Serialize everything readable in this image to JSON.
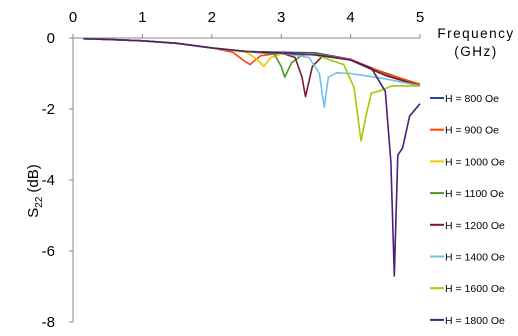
{
  "chart_data": {
    "type": "line",
    "xlabel": "Frequency",
    "xlabel_unit": "(GHz)",
    "ylabel": "S",
    "ylabel_sub": "22",
    "ylabel_unit": "(dB)",
    "xlim": [
      0,
      5
    ],
    "ylim": [
      -8,
      0
    ],
    "x_ticks": [
      0,
      1,
      2,
      3,
      4,
      5
    ],
    "y_ticks": [
      0,
      -2,
      -4,
      -6,
      -8
    ],
    "grid": false,
    "x_axis_position": "top",
    "legend_position": "right",
    "series": [
      {
        "name": "H = 800 Oe",
        "color": "#1f4e9e",
        "x": [
          0.15,
          0.5,
          1.0,
          1.5,
          2.0,
          2.5,
          3.0,
          3.5,
          4.0,
          4.3,
          4.6,
          4.8,
          5.0
        ],
        "y": [
          -0.02,
          -0.04,
          -0.08,
          -0.15,
          -0.28,
          -0.38,
          -0.4,
          -0.42,
          -0.6,
          -0.85,
          -1.05,
          -1.2,
          -1.3
        ]
      },
      {
        "name": "H = 900 Oe",
        "color": "#ff4500",
        "x": [
          0.15,
          0.5,
          1.0,
          1.5,
          2.0,
          2.3,
          2.45,
          2.55,
          2.7,
          3.0,
          3.5,
          4.0,
          4.5,
          5.0
        ],
        "y": [
          -0.02,
          -0.04,
          -0.08,
          -0.15,
          -0.28,
          -0.4,
          -0.62,
          -0.75,
          -0.5,
          -0.42,
          -0.45,
          -0.6,
          -1.0,
          -1.3
        ]
      },
      {
        "name": "H = 1000 Oe",
        "color": "#f5c400",
        "x": [
          0.15,
          0.5,
          1.0,
          1.5,
          2.0,
          2.5,
          2.65,
          2.75,
          2.85,
          3.0,
          3.5,
          4.0,
          4.5,
          5.0
        ],
        "y": [
          -0.02,
          -0.04,
          -0.08,
          -0.15,
          -0.28,
          -0.4,
          -0.6,
          -0.8,
          -0.55,
          -0.45,
          -0.45,
          -0.62,
          -1.05,
          -1.35
        ]
      },
      {
        "name": "H = 1100 Oe",
        "color": "#4a9a2a",
        "x": [
          0.15,
          0.5,
          1.0,
          1.5,
          2.0,
          2.5,
          2.9,
          3.0,
          3.05,
          3.15,
          3.3,
          3.5,
          4.0,
          4.5,
          5.0
        ],
        "y": [
          -0.02,
          -0.04,
          -0.08,
          -0.15,
          -0.28,
          -0.38,
          -0.45,
          -0.8,
          -1.1,
          -0.7,
          -0.48,
          -0.45,
          -0.62,
          -1.05,
          -1.35
        ]
      },
      {
        "name": "H = 1200 Oe",
        "color": "#7b1a2e",
        "x": [
          0.15,
          0.5,
          1.0,
          1.5,
          2.0,
          2.5,
          3.0,
          3.2,
          3.3,
          3.35,
          3.45,
          3.6,
          4.0,
          4.5,
          5.0
        ],
        "y": [
          -0.02,
          -0.04,
          -0.08,
          -0.15,
          -0.28,
          -0.38,
          -0.42,
          -0.55,
          -1.1,
          -1.65,
          -0.8,
          -0.5,
          -0.62,
          -1.05,
          -1.35
        ]
      },
      {
        "name": "H = 1400 Oe",
        "color": "#6ec0ee",
        "x": [
          0.15,
          0.5,
          1.0,
          1.5,
          2.0,
          2.5,
          3.0,
          3.4,
          3.55,
          3.62,
          3.68,
          3.8,
          4.0,
          4.5,
          5.0
        ],
        "y": [
          -0.02,
          -0.04,
          -0.08,
          -0.15,
          -0.28,
          -0.38,
          -0.42,
          -0.55,
          -1.0,
          -1.95,
          -1.1,
          -0.98,
          -1.0,
          -1.15,
          -1.35
        ]
      },
      {
        "name": "H = 1600 Oe",
        "color": "#a0cc00",
        "x": [
          0.15,
          0.5,
          1.0,
          1.5,
          2.0,
          2.5,
          3.0,
          3.5,
          3.9,
          4.05,
          4.15,
          4.22,
          4.3,
          4.4,
          4.6,
          5.0
        ],
        "y": [
          -0.02,
          -0.04,
          -0.08,
          -0.15,
          -0.28,
          -0.38,
          -0.42,
          -0.48,
          -0.75,
          -1.4,
          -2.9,
          -2.2,
          -1.55,
          -1.5,
          -1.35,
          -1.35
        ]
      },
      {
        "name": "H = 1800 Oe",
        "color": "#4b2075",
        "x": [
          0.15,
          0.5,
          1.0,
          1.5,
          2.0,
          2.5,
          3.0,
          3.5,
          4.0,
          4.3,
          4.5,
          4.58,
          4.63,
          4.68,
          4.75,
          4.85,
          5.0
        ],
        "y": [
          -0.02,
          -0.04,
          -0.08,
          -0.15,
          -0.28,
          -0.38,
          -0.42,
          -0.48,
          -0.62,
          -0.85,
          -1.5,
          -3.5,
          -6.7,
          -3.3,
          -3.1,
          -2.2,
          -1.85
        ]
      }
    ]
  }
}
